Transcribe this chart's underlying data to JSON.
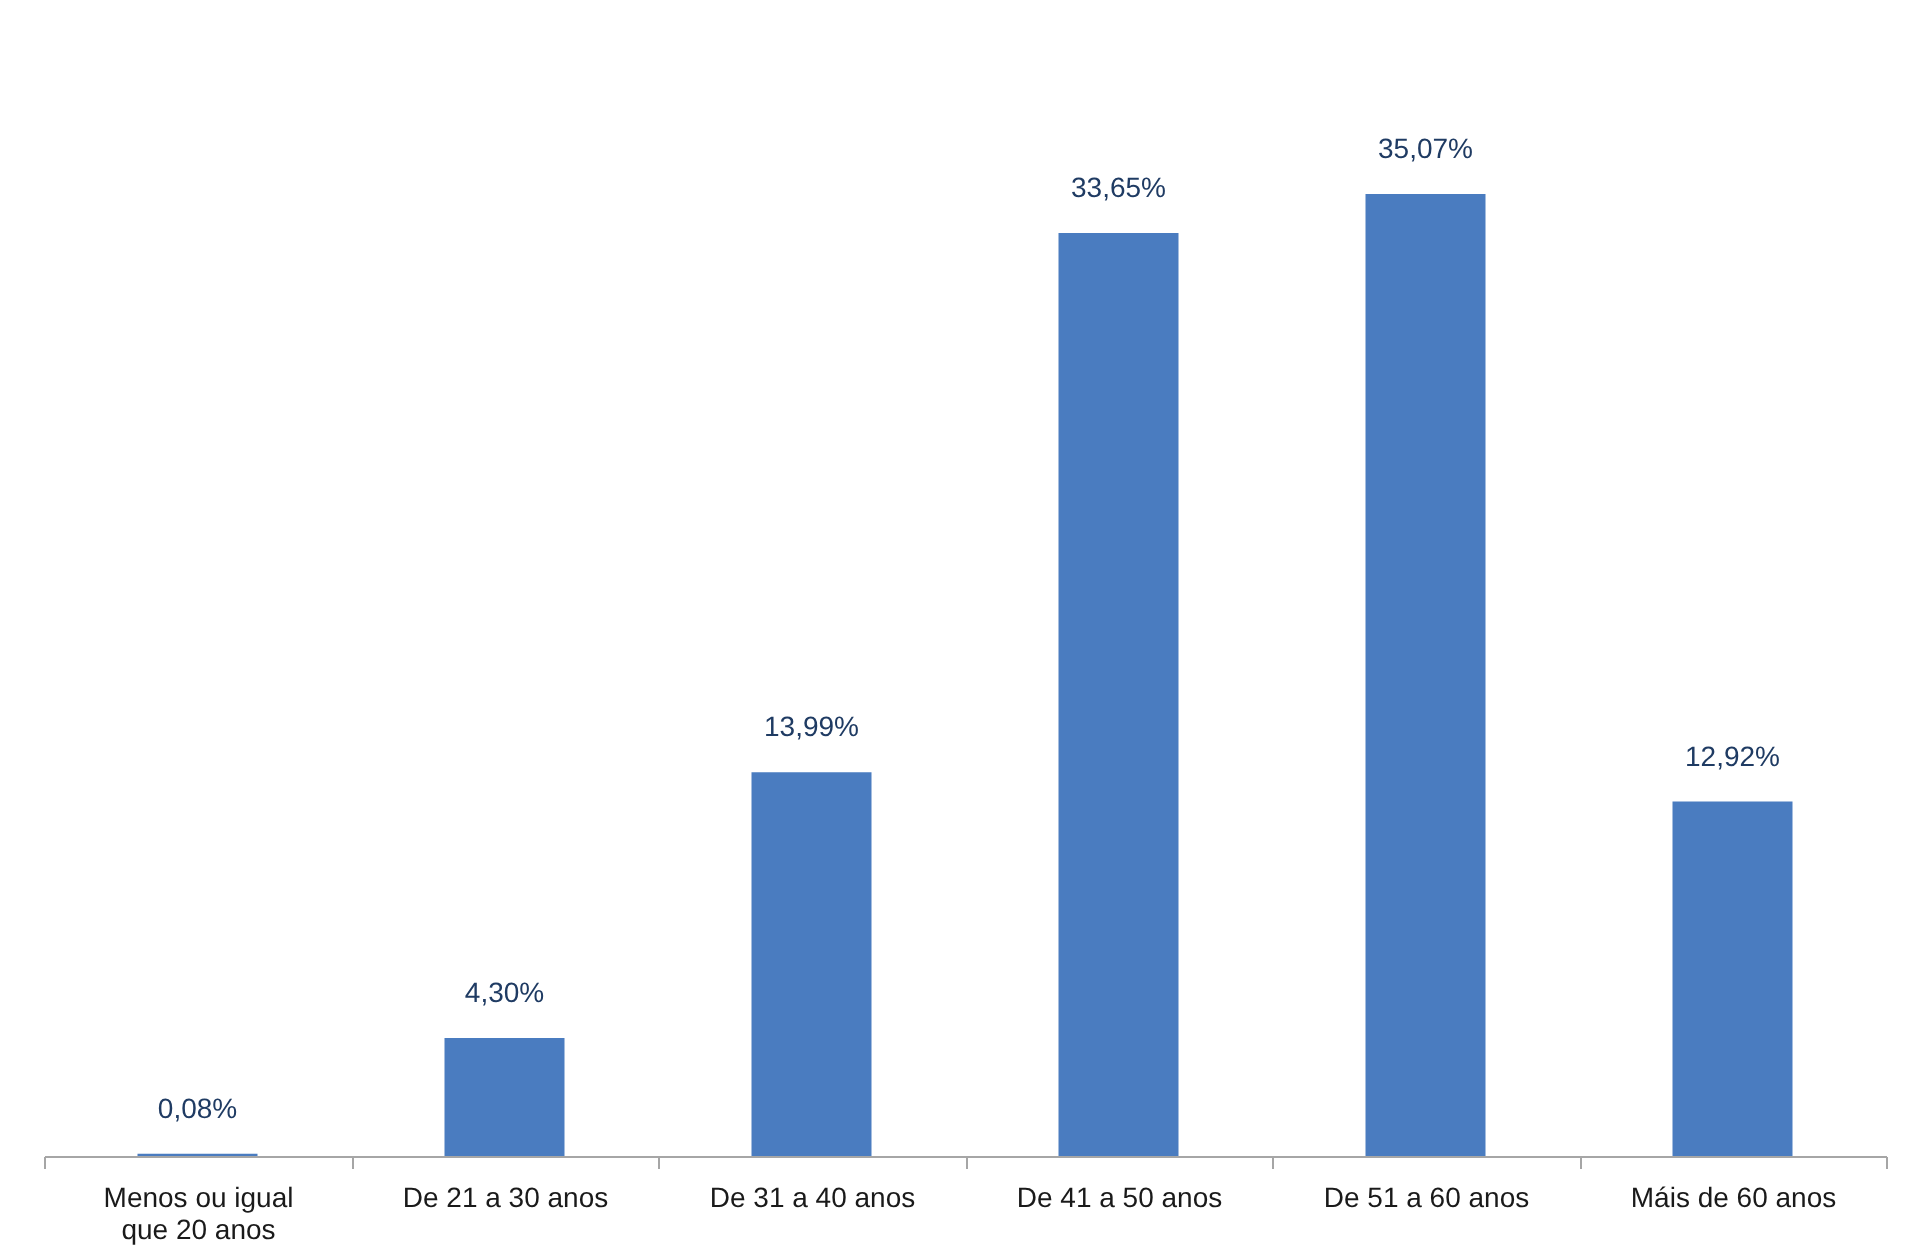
{
  "chart_data": {
    "type": "bar",
    "categories": [
      "Menos ou igual que 20 anos",
      "De 21 a 30 anos",
      "De 31 a 40 anos",
      "De 41 a 50 anos",
      "De 51 a 60 anos",
      "Máis de 60 anos"
    ],
    "values": [
      0.08,
      4.3,
      13.99,
      33.65,
      35.07,
      12.92
    ],
    "value_labels": [
      "0,08%",
      "4,30%",
      "13,99%",
      "33,65%",
      "35,07%",
      "12,92%"
    ],
    "color": "#4a7cc0"
  }
}
